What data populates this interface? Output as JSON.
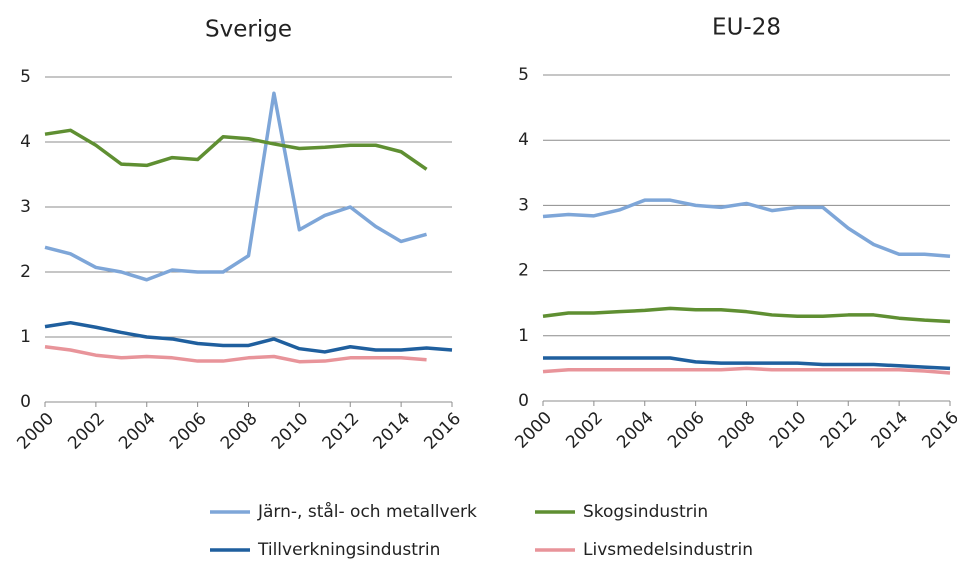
{
  "chart_data": [
    {
      "type": "line",
      "title": "Sverige",
      "x": [
        2000,
        2001,
        2002,
        2003,
        2004,
        2005,
        2006,
        2007,
        2008,
        2009,
        2010,
        2011,
        2012,
        2013,
        2014,
        2015,
        2016
      ],
      "xlim": [
        2000,
        2016
      ],
      "xticks": [
        2000,
        2002,
        2004,
        2006,
        2008,
        2010,
        2012,
        2014,
        2016
      ],
      "ylim": [
        0,
        5
      ],
      "yticks": [
        0,
        1,
        2,
        3,
        4,
        5
      ],
      "grid": true,
      "series": [
        {
          "name": "Järn-, stål- och metallverk",
          "color": "#7ea6d8",
          "values": [
            2.38,
            2.28,
            2.07,
            2.0,
            1.88,
            2.03,
            2.0,
            2.0,
            2.25,
            4.75,
            2.65,
            2.87,
            3.0,
            2.7,
            2.47,
            2.58,
            null
          ]
        },
        {
          "name": "Skogsindustrin",
          "color": "#5f8f32",
          "values": [
            4.12,
            4.18,
            3.95,
            3.66,
            3.64,
            3.76,
            3.73,
            4.08,
            4.05,
            3.97,
            3.9,
            3.92,
            3.95,
            3.95,
            3.85,
            3.58,
            null
          ]
        },
        {
          "name": "Tillverkningsindustrin",
          "color": "#1f5f9e",
          "values": [
            1.16,
            1.22,
            1.15,
            1.07,
            1.0,
            0.97,
            0.9,
            0.87,
            0.87,
            0.97,
            0.82,
            0.77,
            0.85,
            0.8,
            0.8,
            0.83,
            0.8
          ]
        },
        {
          "name": "Livsmedelsindustrin",
          "color": "#e8949a",
          "values": [
            0.85,
            0.8,
            0.72,
            0.68,
            0.7,
            0.68,
            0.63,
            0.63,
            0.68,
            0.7,
            0.62,
            0.63,
            0.68,
            0.68,
            0.68,
            0.65,
            null
          ]
        }
      ]
    },
    {
      "type": "line",
      "title": "EU-28",
      "x": [
        2000,
        2001,
        2002,
        2003,
        2004,
        2005,
        2006,
        2007,
        2008,
        2009,
        2010,
        2011,
        2012,
        2013,
        2014,
        2015,
        2016
      ],
      "xlim": [
        2000,
        2016
      ],
      "xticks": [
        2000,
        2002,
        2004,
        2006,
        2008,
        2010,
        2012,
        2014,
        2016
      ],
      "ylim": [
        0,
        5
      ],
      "yticks": [
        0,
        1,
        2,
        3,
        4,
        5
      ],
      "grid": true,
      "series": [
        {
          "name": "Järn-, stål- och metallverk",
          "color": "#7ea6d8",
          "values": [
            2.83,
            2.86,
            2.84,
            2.93,
            3.08,
            3.08,
            3.0,
            2.97,
            3.03,
            2.92,
            2.97,
            2.97,
            2.65,
            2.4,
            2.25,
            2.25,
            2.22
          ]
        },
        {
          "name": "Skogsindustrin",
          "color": "#5f8f32",
          "values": [
            1.3,
            1.35,
            1.35,
            1.37,
            1.39,
            1.42,
            1.4,
            1.4,
            1.37,
            1.32,
            1.3,
            1.3,
            1.32,
            1.32,
            1.27,
            1.24,
            1.22
          ]
        },
        {
          "name": "Tillverkningsindustrin",
          "color": "#1f5f9e",
          "values": [
            0.66,
            0.66,
            0.66,
            0.66,
            0.66,
            0.66,
            0.6,
            0.58,
            0.58,
            0.58,
            0.58,
            0.56,
            0.56,
            0.56,
            0.54,
            0.52,
            0.5
          ]
        },
        {
          "name": "Livsmedelsindustrin",
          "color": "#e8949a",
          "values": [
            0.45,
            0.48,
            0.48,
            0.48,
            0.48,
            0.48,
            0.48,
            0.48,
            0.5,
            0.48,
            0.48,
            0.48,
            0.48,
            0.48,
            0.48,
            0.46,
            0.43
          ]
        }
      ]
    }
  ]
}
